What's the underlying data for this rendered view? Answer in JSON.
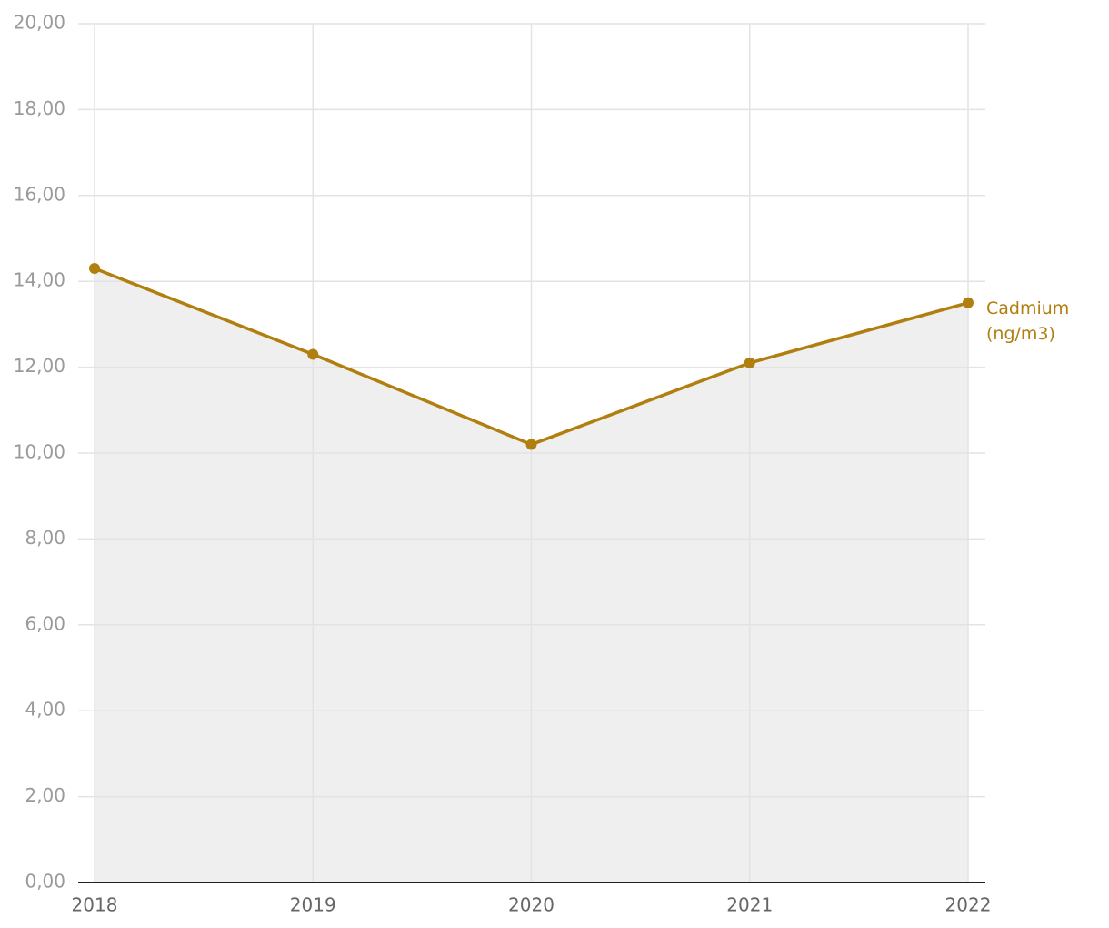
{
  "chart_data": {
    "type": "line",
    "categories": [
      "2018",
      "2019",
      "2020",
      "2021",
      "2022"
    ],
    "series": [
      {
        "name": "Cadmium (ng/m3)",
        "color": "#b07f0f",
        "values": [
          14.3,
          12.3,
          10.2,
          12.1,
          13.5
        ]
      }
    ],
    "area_fill": "#efefef",
    "ylim": [
      0,
      20
    ],
    "yticks": [
      {
        "value": 0,
        "label": "0,00"
      },
      {
        "value": 2,
        "label": "2,00"
      },
      {
        "value": 4,
        "label": "4,00"
      },
      {
        "value": 6,
        "label": "6,00"
      },
      {
        "value": 8,
        "label": "8,00"
      },
      {
        "value": 10,
        "label": "10,00"
      },
      {
        "value": 12,
        "label": "12,00"
      },
      {
        "value": 14,
        "label": "14,00"
      },
      {
        "value": 16,
        "label": "16,00"
      },
      {
        "value": 18,
        "label": "18,00"
      },
      {
        "value": 20,
        "label": "20,00"
      }
    ],
    "grid": true
  }
}
